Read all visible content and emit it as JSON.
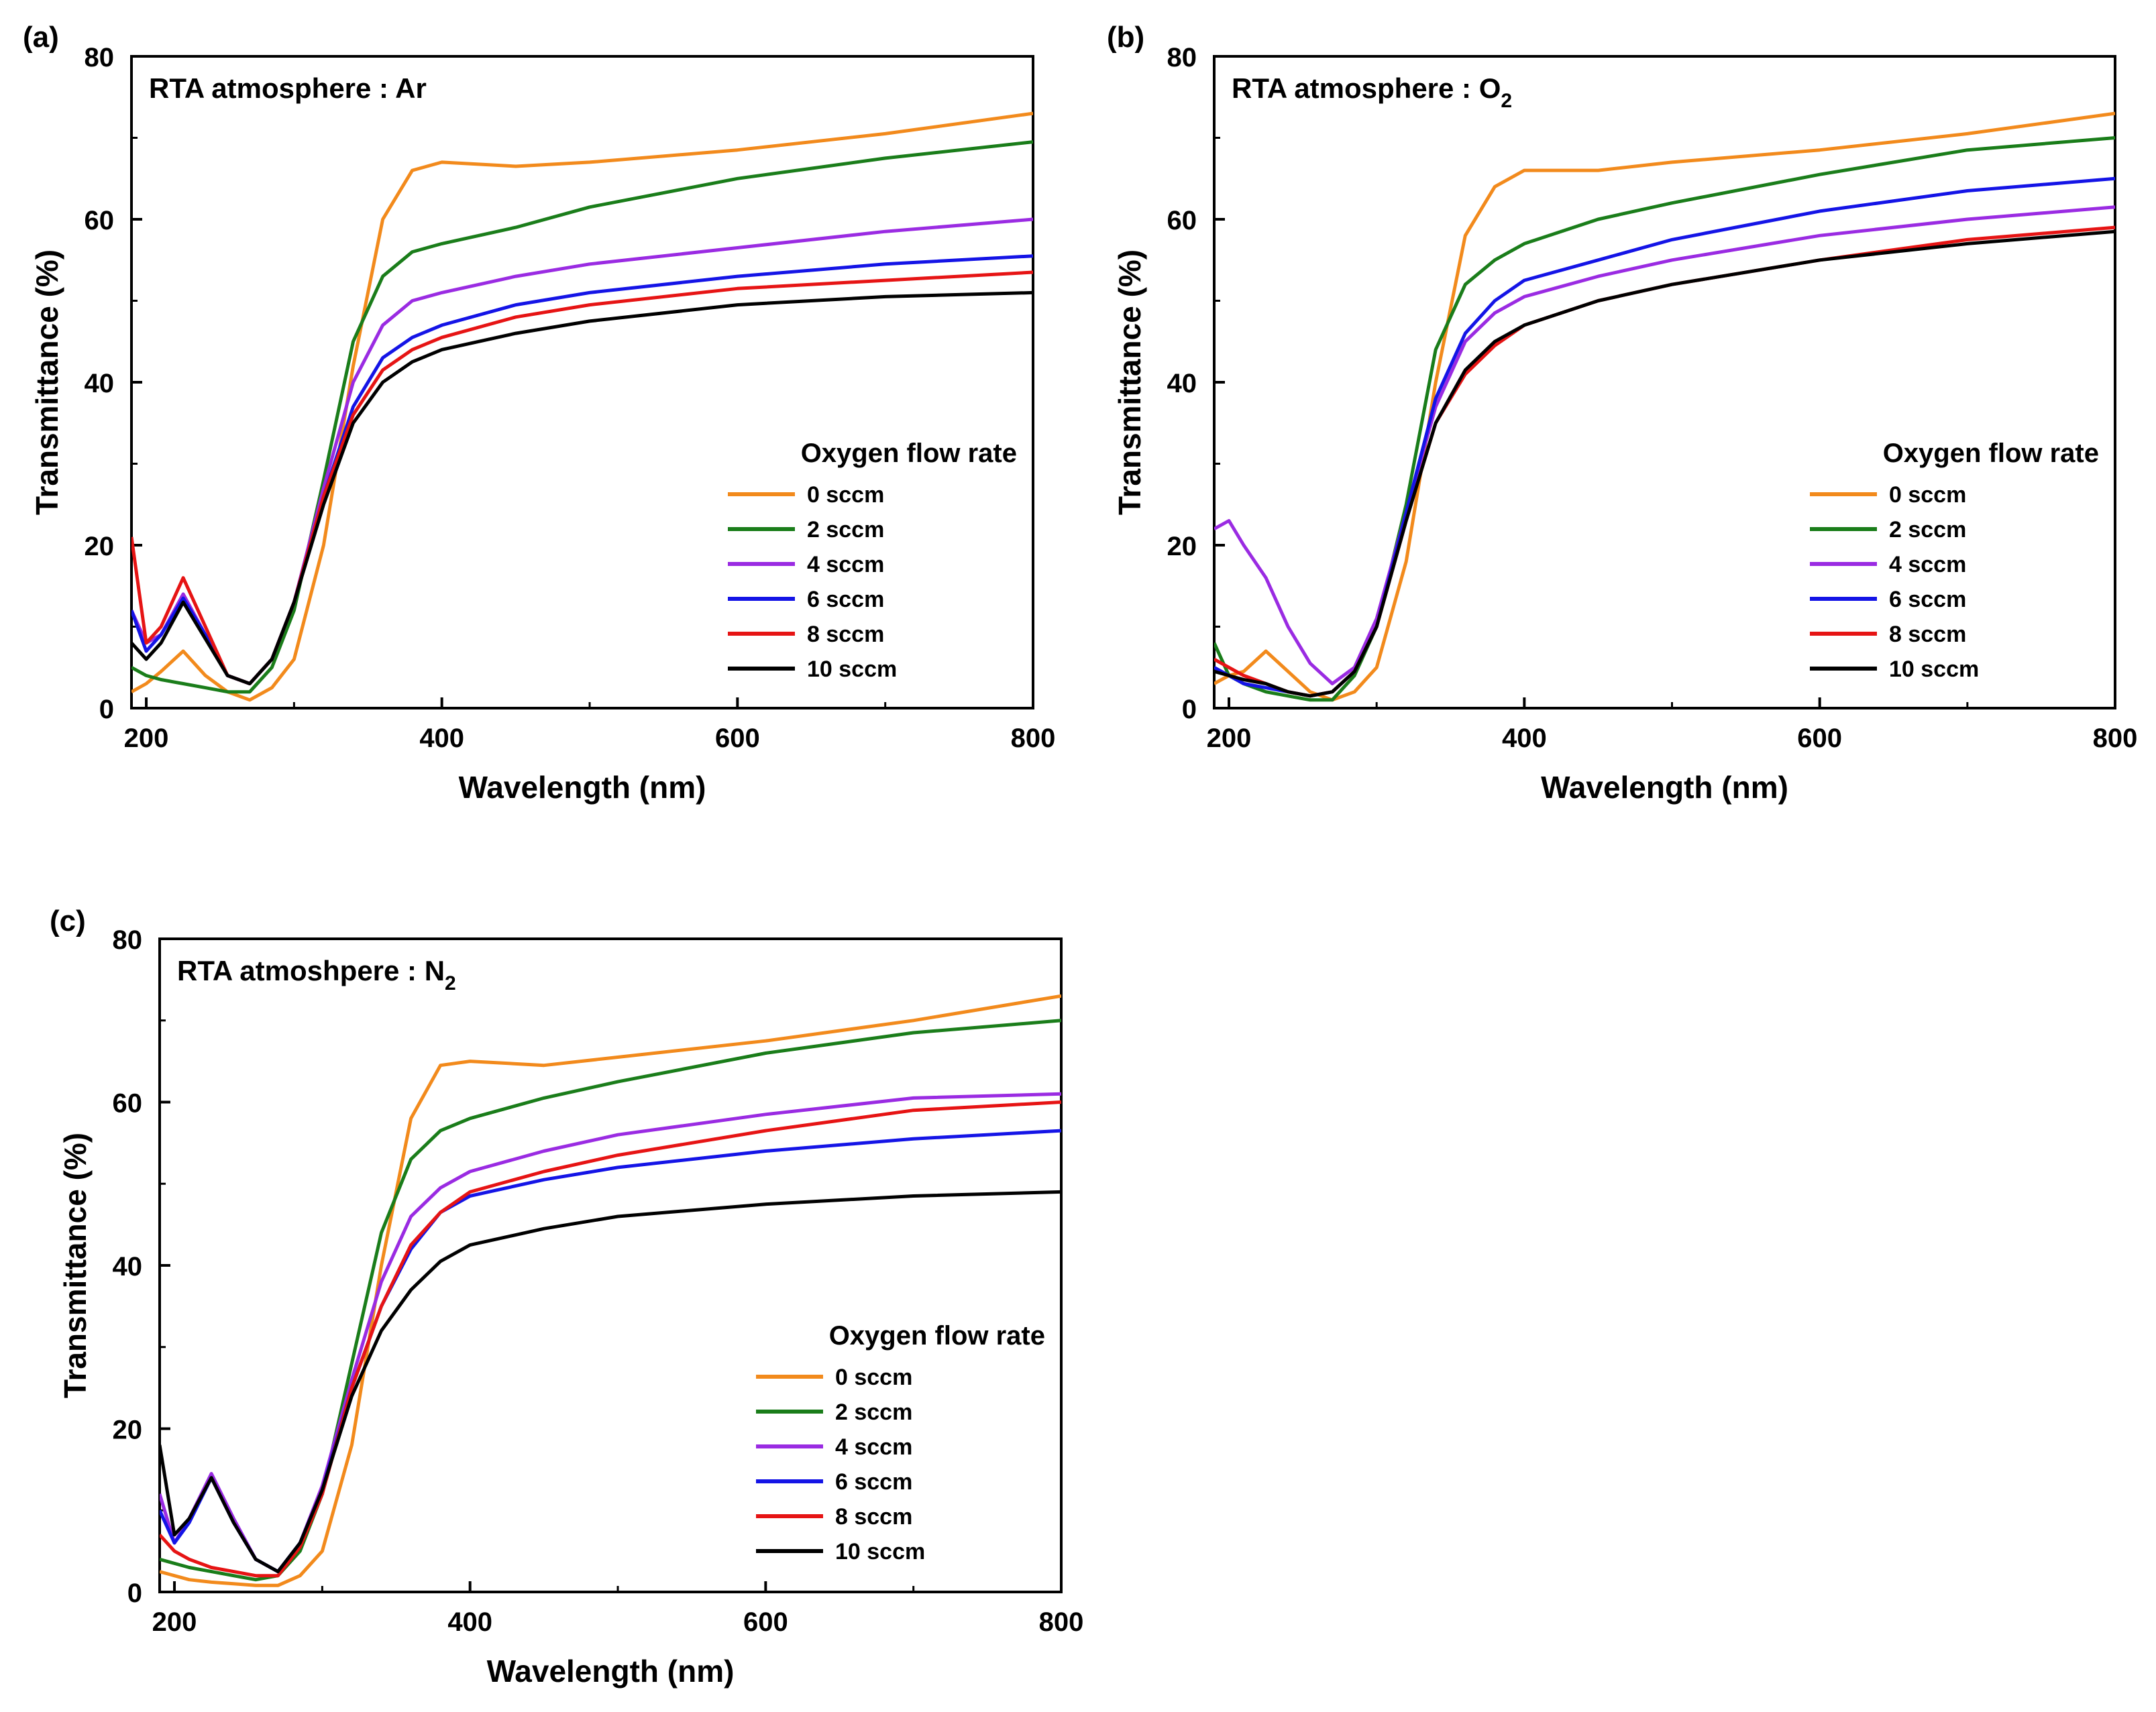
{
  "figure": {
    "legend_title": "Oxygen flow rate",
    "series_labels": [
      "0 sccm",
      "2 sccm",
      "4 sccm",
      "6 sccm",
      "8 sccm",
      "10 sccm"
    ],
    "series_colors": [
      "#f28a1c",
      "#1a7d1a",
      "#9a2be2",
      "#1414e6",
      "#e61414",
      "#000000"
    ]
  },
  "chart_data": [
    {
      "type": "line",
      "panel_label": "(a)",
      "title": "RTA atmosphere : Ar",
      "title_main": "RTA atmosphere : Ar",
      "title_sub": "",
      "xlabel": "Wavelength (nm)",
      "ylabel": "Transmittance (%)",
      "xlim": [
        190,
        800
      ],
      "ylim": [
        0,
        80
      ],
      "xticks": [
        "200",
        "400",
        "600",
        "800"
      ],
      "yticks": [
        "0",
        "20",
        "40",
        "60",
        "80"
      ],
      "legend_title": "Oxygen flow rate",
      "legend_position": "lower-right",
      "x": [
        190,
        200,
        210,
        225,
        240,
        255,
        270,
        285,
        300,
        320,
        340,
        360,
        380,
        400,
        450,
        500,
        600,
        700,
        800
      ],
      "series": [
        {
          "name": "0 sccm",
          "color": "#f28a1c",
          "values": [
            2.0,
            3.0,
            4.5,
            7.0,
            4.0,
            2.0,
            1.0,
            2.5,
            6.0,
            20.0,
            42.0,
            60.0,
            66.0,
            67.0,
            66.5,
            67.0,
            68.5,
            70.5,
            73.0
          ]
        },
        {
          "name": "2 sccm",
          "color": "#1a7d1a",
          "values": [
            5.0,
            4.0,
            3.5,
            3.0,
            2.5,
            2.0,
            2.0,
            5.0,
            12.0,
            28.0,
            45.0,
            53.0,
            56.0,
            57.0,
            59.0,
            61.5,
            65.0,
            67.5,
            69.5
          ]
        },
        {
          "name": "4 sccm",
          "color": "#9a2be2",
          "values": [
            12.0,
            8.0,
            9.0,
            14.0,
            9.0,
            4.0,
            3.0,
            6.0,
            13.0,
            27.0,
            40.0,
            47.0,
            50.0,
            51.0,
            53.0,
            54.5,
            56.5,
            58.5,
            60.0
          ]
        },
        {
          "name": "6 sccm",
          "color": "#1414e6",
          "values": [
            12.0,
            7.0,
            9.0,
            13.5,
            9.0,
            4.0,
            3.0,
            6.0,
            13.0,
            26.0,
            37.0,
            43.0,
            45.5,
            47.0,
            49.5,
            51.0,
            53.0,
            54.5,
            55.5
          ]
        },
        {
          "name": "8 sccm",
          "color": "#e61414",
          "values": [
            21.0,
            8.0,
            10.0,
            16.0,
            10.0,
            4.0,
            3.0,
            6.0,
            13.0,
            26.0,
            36.0,
            41.5,
            44.0,
            45.5,
            48.0,
            49.5,
            51.5,
            52.5,
            53.5
          ]
        },
        {
          "name": "10 sccm",
          "color": "#000000",
          "values": [
            8.0,
            6.0,
            8.0,
            13.0,
            8.5,
            4.0,
            3.0,
            6.0,
            13.0,
            25.0,
            35.0,
            40.0,
            42.5,
            44.0,
            46.0,
            47.5,
            49.5,
            50.5,
            51.0
          ]
        }
      ]
    },
    {
      "type": "line",
      "panel_label": "(b)",
      "title": "RTA atmosphere : O2",
      "title_main": "RTA atmosphere : O",
      "title_sub": "2",
      "xlabel": "Wavelength (nm)",
      "ylabel": "Transmittance (%)",
      "xlim": [
        190,
        800
      ],
      "ylim": [
        0,
        80
      ],
      "xticks": [
        "200",
        "400",
        "600",
        "800"
      ],
      "yticks": [
        "0",
        "20",
        "40",
        "60",
        "80"
      ],
      "legend_title": "Oxygen flow rate",
      "legend_position": "lower-right",
      "x": [
        190,
        200,
        210,
        225,
        240,
        255,
        270,
        285,
        300,
        320,
        340,
        360,
        380,
        400,
        450,
        500,
        600,
        700,
        800
      ],
      "series": [
        {
          "name": "0 sccm",
          "color": "#f28a1c",
          "values": [
            3.0,
            4.0,
            4.5,
            7.0,
            4.5,
            2.0,
            1.0,
            2.0,
            5.0,
            18.0,
            40.0,
            58.0,
            64.0,
            66.0,
            66.0,
            67.0,
            68.5,
            70.5,
            73.0
          ]
        },
        {
          "name": "2 sccm",
          "color": "#1a7d1a",
          "values": [
            8.0,
            4.0,
            3.0,
            2.0,
            1.5,
            1.0,
            1.0,
            4.0,
            10.0,
            25.0,
            44.0,
            52.0,
            55.0,
            57.0,
            60.0,
            62.0,
            65.5,
            68.5,
            70.0
          ]
        },
        {
          "name": "4 sccm",
          "color": "#9a2be2",
          "values": [
            22.0,
            23.0,
            20.0,
            16.0,
            10.0,
            5.5,
            3.0,
            5.0,
            11.0,
            24.0,
            37.0,
            45.0,
            48.5,
            50.5,
            53.0,
            55.0,
            58.0,
            60.0,
            61.5
          ]
        },
        {
          "name": "6 sccm",
          "color": "#1414e6",
          "values": [
            5.0,
            4.0,
            3.0,
            2.5,
            2.0,
            1.5,
            2.0,
            4.5,
            10.0,
            24.0,
            38.0,
            46.0,
            50.0,
            52.5,
            55.0,
            57.5,
            61.0,
            63.5,
            65.0
          ]
        },
        {
          "name": "8 sccm",
          "color": "#e61414",
          "values": [
            6.0,
            5.0,
            4.0,
            3.0,
            2.0,
            1.5,
            2.0,
            4.5,
            10.0,
            23.0,
            35.0,
            41.0,
            44.5,
            47.0,
            50.0,
            52.0,
            55.0,
            57.5,
            59.0
          ]
        },
        {
          "name": "10 sccm",
          "color": "#000000",
          "values": [
            4.5,
            4.0,
            3.5,
            3.0,
            2.0,
            1.5,
            2.0,
            4.5,
            10.0,
            23.0,
            35.0,
            41.5,
            45.0,
            47.0,
            50.0,
            52.0,
            55.0,
            57.0,
            58.5
          ]
        }
      ]
    },
    {
      "type": "line",
      "panel_label": "(c)",
      "title": "RTA atmoshpere : N2",
      "title_main": "RTA atmoshpere : N",
      "title_sub": "2",
      "xlabel": "Wavelength (nm)",
      "ylabel": "Transmittance (%)",
      "xlim": [
        190,
        800
      ],
      "ylim": [
        0,
        80
      ],
      "xticks": [
        "200",
        "400",
        "600",
        "800"
      ],
      "yticks": [
        "0",
        "20",
        "40",
        "60",
        "80"
      ],
      "legend_title": "Oxygen flow rate",
      "legend_position": "lower-right",
      "x": [
        190,
        200,
        210,
        225,
        240,
        255,
        270,
        285,
        300,
        320,
        340,
        360,
        380,
        400,
        450,
        500,
        600,
        700,
        800
      ],
      "series": [
        {
          "name": "0 sccm",
          "color": "#f28a1c",
          "values": [
            2.5,
            2.0,
            1.5,
            1.2,
            1.0,
            0.8,
            0.8,
            2.0,
            5.0,
            18.0,
            40.0,
            58.0,
            64.5,
            65.0,
            64.5,
            65.5,
            67.5,
            70.0,
            73.0
          ]
        },
        {
          "name": "2 sccm",
          "color": "#1a7d1a",
          "values": [
            4.0,
            3.5,
            3.0,
            2.5,
            2.0,
            1.5,
            2.0,
            5.0,
            12.0,
            28.0,
            44.0,
            53.0,
            56.5,
            58.0,
            60.5,
            62.5,
            66.0,
            68.5,
            70.0
          ]
        },
        {
          "name": "4 sccm",
          "color": "#9a2be2",
          "values": [
            12.0,
            6.0,
            9.0,
            14.5,
            9.0,
            4.0,
            2.5,
            6.0,
            13.0,
            26.0,
            38.0,
            46.0,
            49.5,
            51.5,
            54.0,
            56.0,
            58.5,
            60.5,
            61.0
          ]
        },
        {
          "name": "6 sccm",
          "color": "#1414e6",
          "values": [
            10.0,
            6.0,
            8.5,
            14.0,
            8.5,
            4.0,
            2.5,
            6.0,
            12.5,
            25.0,
            35.0,
            42.0,
            46.5,
            48.5,
            50.5,
            52.0,
            54.0,
            55.5,
            56.5
          ]
        },
        {
          "name": "8 sccm",
          "color": "#e61414",
          "values": [
            7.0,
            5.0,
            4.0,
            3.0,
            2.5,
            2.0,
            2.0,
            5.5,
            12.0,
            25.0,
            35.0,
            42.5,
            46.5,
            49.0,
            51.5,
            53.5,
            56.5,
            59.0,
            60.0
          ]
        },
        {
          "name": "10 sccm",
          "color": "#000000",
          "values": [
            18.0,
            7.0,
            9.0,
            14.0,
            8.5,
            4.0,
            2.5,
            6.0,
            12.5,
            24.0,
            32.0,
            37.0,
            40.5,
            42.5,
            44.5,
            46.0,
            47.5,
            48.5,
            49.0
          ]
        }
      ]
    }
  ]
}
